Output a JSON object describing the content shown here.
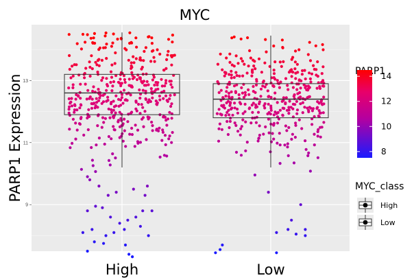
{
  "chart_data": {
    "type": "boxplot-jitter",
    "title": "MYC",
    "ylabel": "PARP1 Expression",
    "xlabel": "",
    "categories": [
      "High",
      "Low"
    ],
    "ylim": [
      7.5,
      14.8
    ],
    "y_ticks": [
      9,
      11,
      13
    ],
    "y_tick_labels": [
      "9",
      "11",
      "13"
    ],
    "grid": true,
    "boxes": [
      {
        "category": "High",
        "whisker_low": 10.2,
        "q1": 11.9,
        "median": 12.6,
        "q3": 13.2,
        "whisker_high": 14.55
      },
      {
        "category": "Low",
        "whisker_low": 10.2,
        "q1": 11.8,
        "median": 12.4,
        "q3": 12.9,
        "whisker_high": 14.45
      }
    ],
    "color_legend": {
      "title": "PARP1",
      "low_color": "#1a1aff",
      "high_color": "#ff0000",
      "mid_color": "#d4009a",
      "min": 7.5,
      "max": 14.5,
      "ticks": [
        8,
        10,
        12,
        14
      ],
      "tick_labels": [
        "8",
        "10",
        "12",
        "14"
      ]
    },
    "shape_legend": {
      "title": "MYC_class",
      "items": [
        "High",
        "Low"
      ]
    },
    "outlier_points": {
      "High": [
        [
          -0.28,
          9.8
        ],
        [
          -0.2,
          9.6
        ],
        [
          -0.3,
          9.9
        ],
        [
          -0.12,
          9.3
        ],
        [
          -0.05,
          9.4
        ],
        [
          0.1,
          9.5
        ],
        [
          0.2,
          9.3
        ],
        [
          0.22,
          9.6
        ],
        [
          -0.3,
          8.8
        ],
        [
          -0.23,
          8.95
        ],
        [
          -0.17,
          8.9
        ],
        [
          -0.1,
          8.6
        ],
        [
          -0.02,
          8.4
        ],
        [
          0.05,
          8.5
        ],
        [
          0.12,
          8.6
        ],
        [
          0.18,
          8.8
        ],
        [
          0.26,
          8.8
        ],
        [
          -0.34,
          8.1
        ],
        [
          -0.26,
          8.2
        ],
        [
          -0.14,
          8.0
        ],
        [
          -0.07,
          8.1
        ],
        [
          0.02,
          8.2
        ],
        [
          0.16,
          8.3
        ],
        [
          0.23,
          8.0
        ],
        [
          -0.24,
          7.8
        ],
        [
          -0.16,
          7.75
        ],
        [
          0.03,
          7.7
        ],
        [
          -0.3,
          7.5
        ],
        [
          0.06,
          7.4
        ],
        [
          0.09,
          7.32
        ]
      ],
      "Low": [
        [
          -0.02,
          9.4
        ],
        [
          0.26,
          9.0
        ],
        [
          0.18,
          8.5
        ],
        [
          0.15,
          8.2
        ],
        [
          0.22,
          8.05
        ],
        [
          0.3,
          8.2
        ],
        [
          0.3,
          8.0
        ],
        [
          -0.42,
          7.7
        ],
        [
          0.05,
          8.1
        ],
        [
          -0.48,
          7.45
        ],
        [
          -0.44,
          7.55
        ],
        [
          0.05,
          7.45
        ]
      ]
    }
  }
}
